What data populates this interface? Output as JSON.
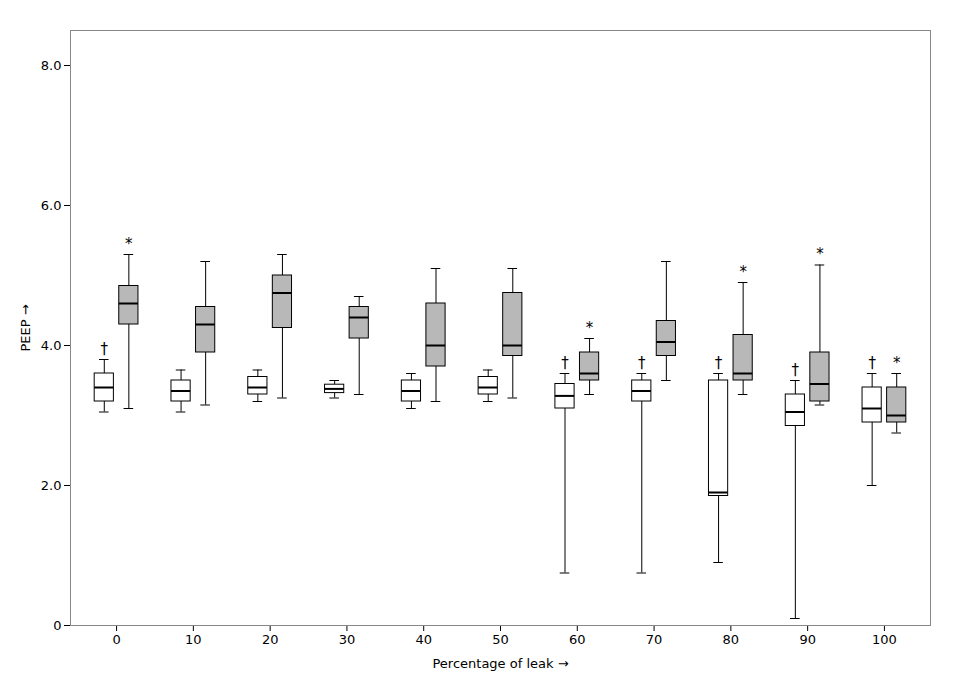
{
  "chart_data": {
    "type": "box",
    "categories": [
      "0",
      "10",
      "20",
      "30",
      "40",
      "50",
      "60",
      "70",
      "80",
      "90",
      "100"
    ],
    "xlabel": "Percentage of leak",
    "ylabel": "PEEP",
    "ylim": [
      0,
      8.5
    ],
    "yticks": [
      0,
      {
        "value": 2.0,
        "label": "2.0"
      },
      {
        "value": 4.0,
        "label": "4.0"
      },
      {
        "value": 6.0,
        "label": "6.0"
      },
      {
        "value": 8.0,
        "label": "8.0"
      }
    ],
    "series": [
      {
        "color": "white",
        "values": [
          {
            "low": 3.05,
            "q1": 3.2,
            "median": 3.4,
            "q3": 3.6,
            "high": 3.8
          },
          {
            "low": 3.05,
            "q1": 3.2,
            "median": 3.35,
            "q3": 3.5,
            "high": 3.65
          },
          {
            "low": 3.2,
            "q1": 3.3,
            "median": 3.4,
            "q3": 3.55,
            "high": 3.65
          },
          {
            "low": 3.25,
            "q1": 3.32,
            "median": 3.38,
            "q3": 3.44,
            "high": 3.5
          },
          {
            "low": 3.1,
            "q1": 3.2,
            "median": 3.35,
            "q3": 3.5,
            "high": 3.6
          },
          {
            "low": 3.2,
            "q1": 3.3,
            "median": 3.4,
            "q3": 3.55,
            "high": 3.65
          },
          {
            "low": 0.75,
            "q1": 3.1,
            "median": 3.28,
            "q3": 3.45,
            "high": 3.6
          },
          {
            "low": 0.75,
            "q1": 3.2,
            "median": 3.35,
            "q3": 3.5,
            "high": 3.6
          },
          {
            "low": 0.9,
            "q1": 1.85,
            "median": 1.9,
            "q3": 3.5,
            "high": 3.6
          },
          {
            "low": 0.1,
            "q1": 2.85,
            "median": 3.05,
            "q3": 3.3,
            "high": 3.5
          },
          {
            "low": 2.0,
            "q1": 2.9,
            "median": 3.1,
            "q3": 3.4,
            "high": 3.6
          }
        ],
        "annotations": [
          {
            "category": "0",
            "text": "†"
          },
          {
            "category": "60",
            "text": "†"
          },
          {
            "category": "70",
            "text": "†"
          },
          {
            "category": "80",
            "text": "†"
          },
          {
            "category": "90",
            "text": "†"
          },
          {
            "category": "100",
            "text": "†"
          }
        ]
      },
      {
        "color": "#b8b8b8",
        "values": [
          {
            "low": 3.1,
            "q1": 4.3,
            "median": 4.6,
            "q3": 4.85,
            "high": 5.3
          },
          {
            "low": 3.15,
            "q1": 3.9,
            "median": 4.3,
            "q3": 4.55,
            "high": 5.2
          },
          {
            "low": 3.25,
            "q1": 4.25,
            "median": 4.75,
            "q3": 5.0,
            "high": 5.3
          },
          {
            "low": 3.3,
            "q1": 4.1,
            "median": 4.4,
            "q3": 4.55,
            "high": 4.7
          },
          {
            "low": 3.2,
            "q1": 3.7,
            "median": 4.0,
            "q3": 4.6,
            "high": 5.1
          },
          {
            "low": 3.25,
            "q1": 3.85,
            "median": 4.0,
            "q3": 4.75,
            "high": 5.1
          },
          {
            "low": 3.3,
            "q1": 3.5,
            "median": 3.6,
            "q3": 3.9,
            "high": 4.1
          },
          {
            "low": 3.5,
            "q1": 3.85,
            "median": 4.05,
            "q3": 4.35,
            "high": 5.2
          },
          {
            "low": 3.3,
            "q1": 3.5,
            "median": 3.6,
            "q3": 4.15,
            "high": 4.9
          },
          {
            "low": 3.15,
            "q1": 3.2,
            "median": 3.45,
            "q3": 3.9,
            "high": 5.15
          },
          {
            "low": 2.75,
            "q1": 2.9,
            "median": 3.0,
            "q3": 3.4,
            "high": 3.6
          }
        ],
        "annotations": [
          {
            "category": "0",
            "text": "*"
          },
          {
            "category": "60",
            "text": "*"
          },
          {
            "category": "80",
            "text": "*"
          },
          {
            "category": "90",
            "text": "*"
          },
          {
            "category": "100",
            "text": "*"
          }
        ]
      }
    ]
  }
}
